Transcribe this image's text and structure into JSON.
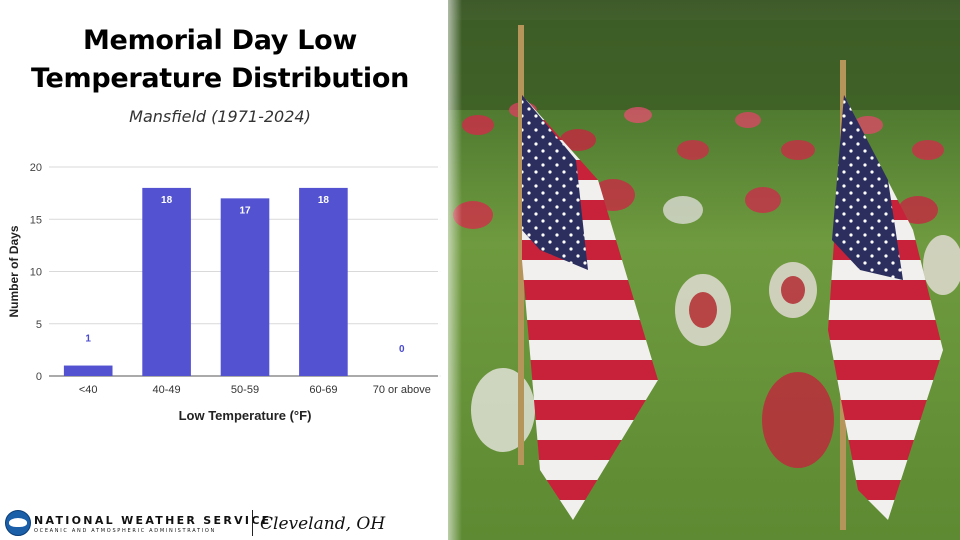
{
  "header": {
    "title_line1": "Memorial Day Low",
    "title_line2": "Temperature Distribution",
    "subtitle": "Mansfield (1971-2024)"
  },
  "chart_data": {
    "type": "bar",
    "categories": [
      "<40",
      "40-49",
      "50-59",
      "60-69",
      "70 or above"
    ],
    "values": [
      1,
      18,
      17,
      18,
      0
    ],
    "xlabel": "Low Temperature (°F)",
    "ylabel": "Number of Days",
    "ylim": [
      0,
      20
    ],
    "yticks": [
      0,
      5,
      10,
      15,
      20
    ],
    "grid": true,
    "data_labels": true,
    "legend": "none",
    "bar_color": "#5353d1",
    "label_color_inside": "#ffffff",
    "label_color_outside": "#4a4ad0"
  },
  "footer": {
    "org_name": "NATIONAL WEATHER SERVICE",
    "org_subtitle": "OCEANIC AND ATMOSPHERIC ADMINISTRATION",
    "office": "Cleveland, OH"
  },
  "photo": {
    "description_icon": "flag-photo-icon"
  }
}
